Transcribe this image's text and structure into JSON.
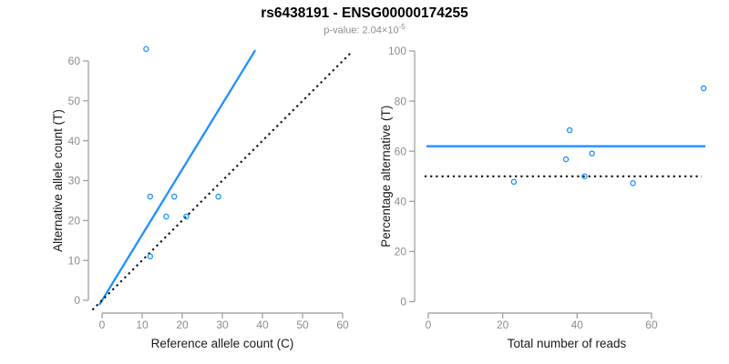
{
  "header": {
    "title": "rs6438191 - ENSG00000174255",
    "subtitle": {
      "prefix": "p-value: ",
      "base": "2.04×10",
      "exponent": "-5"
    }
  },
  "colors": {
    "accent_blue": "#1E90FF",
    "dotted_black": "#000000",
    "axis_line_gray": "#999999",
    "tick_label_gray": "#8c8c8c",
    "axis_title_dark": "#1a1a1a",
    "subtitle_gray": "#8c8c8c",
    "background": "#ffffff"
  },
  "chart_data": [
    {
      "name": "allele-counts-panel",
      "type": "scatter",
      "title": "",
      "xlabel": "Reference allele count (C)",
      "ylabel": "Alternative allele count (T)",
      "xticks": [
        0,
        10,
        20,
        30,
        40,
        50,
        60
      ],
      "yticks": [
        0,
        10,
        20,
        30,
        40,
        50,
        60
      ],
      "xlim": [
        -2.4,
        62.4
      ],
      "ylim": [
        -2.5,
        65.5
      ],
      "grid": false,
      "points": [
        [
          11,
          63
        ],
        [
          12,
          26
        ],
        [
          18,
          26
        ],
        [
          29,
          26
        ],
        [
          16,
          21
        ],
        [
          21,
          21
        ],
        [
          12,
          11
        ]
      ],
      "lines": [
        {
          "name": "fitted-proportion-line",
          "style": "solid",
          "color": "#1E90FF",
          "from": [
            -0.7,
            -1.15
          ],
          "to": [
            38.2,
            62.7
          ]
        },
        {
          "name": "identity-line",
          "style": "dotted",
          "color": "#000000",
          "from": [
            -2.4,
            -2.4
          ],
          "to": [
            62.3,
            62.3
          ]
        }
      ]
    },
    {
      "name": "percentage-reads-panel",
      "type": "scatter",
      "title": "",
      "xlabel": "Total number of reads",
      "ylabel": "Percentage alternative (T)",
      "xticks": [
        0,
        20,
        40,
        60
      ],
      "yticks": [
        0,
        20,
        40,
        60,
        80,
        100
      ],
      "xlim": [
        -3,
        77
      ],
      "ylim": [
        -4,
        104
      ],
      "grid": false,
      "points": [
        [
          74,
          85.1
        ],
        [
          38,
          68.4
        ],
        [
          44,
          59.1
        ],
        [
          37,
          56.8
        ],
        [
          42,
          50
        ],
        [
          23,
          47.8
        ],
        [
          55,
          47.3
        ]
      ],
      "lines": [
        {
          "name": "mean-percentage-line",
          "style": "solid",
          "color": "#1E90FF",
          "from": [
            -0.5,
            62
          ],
          "to": [
            74.5,
            62
          ]
        },
        {
          "name": "null-50-percent-line",
          "style": "dotted",
          "color": "#000000",
          "from": [
            -1,
            50
          ],
          "to": [
            73.5,
            50
          ]
        }
      ]
    }
  ]
}
